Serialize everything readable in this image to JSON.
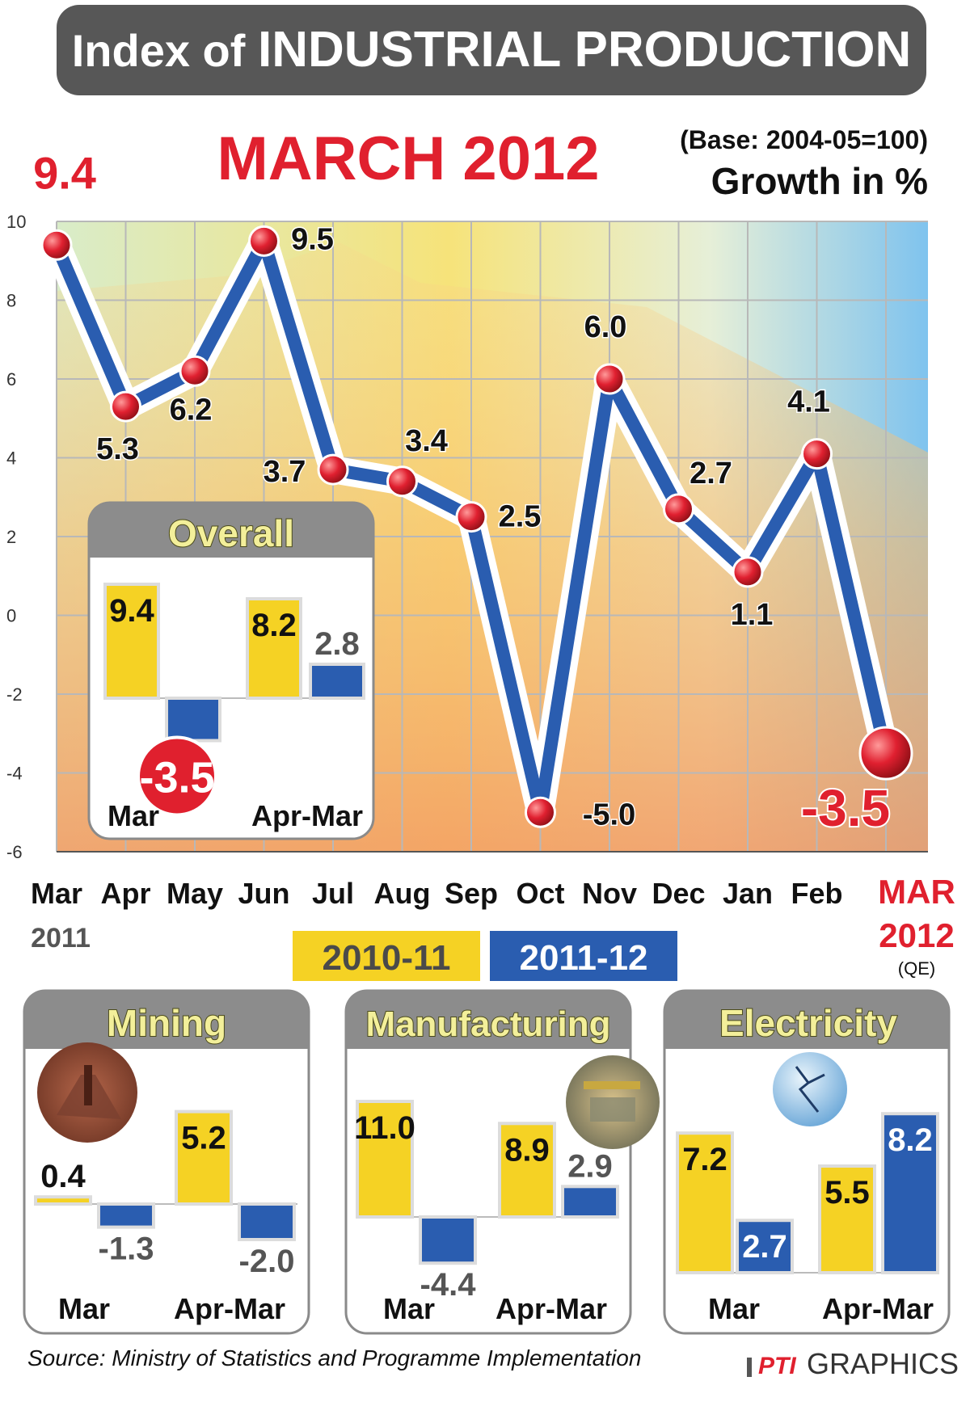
{
  "header": {
    "title_light": "Index of",
    "title_bold": "INDUSTRIAL PRODUCTION",
    "subtitle": "MARCH 2012",
    "base_note": "(Base: 2004-05=100)",
    "growth_label": "Growth in %"
  },
  "colors": {
    "series_2010_11": "#f5d224",
    "series_2011_12": "#2a5db0",
    "highlight_red": "#e0202e",
    "title_bar": "#555555"
  },
  "chart_data": [
    {
      "type": "line",
      "title": "MARCH 2012",
      "ylabel": "Growth in %",
      "ylim": [
        -6,
        10
      ],
      "yticks": [
        "10",
        "8",
        "6",
        "4",
        "2",
        "0",
        "-2",
        "-4",
        "-6"
      ],
      "categories": [
        "Mar",
        "Apr",
        "May",
        "Jun",
        "Jul",
        "Aug",
        "Sep",
        "Oct",
        "Nov",
        "Dec",
        "Jan",
        "Feb",
        "MAR"
      ],
      "year_labels": {
        "first": "2011",
        "last": "2012",
        "last_note": "(QE)"
      },
      "values": [
        9.4,
        5.3,
        6.2,
        9.5,
        3.7,
        3.4,
        2.5,
        -5.0,
        6.0,
        2.7,
        1.1,
        4.1,
        -3.5
      ],
      "value_labels": [
        "9.4",
        "5.3",
        "6.2",
        "9.5",
        "3.7",
        "3.4",
        "2.5",
        "-5.0",
        "6.0",
        "2.7",
        "1.1",
        "4.1",
        "-3.5"
      ]
    },
    {
      "type": "bar",
      "title": "Overall",
      "categories": [
        "Mar",
        "Apr-Mar"
      ],
      "series": [
        {
          "name": "2010-11",
          "values": [
            9.4,
            8.2
          ]
        },
        {
          "name": "2011-12",
          "values": [
            -3.5,
            2.8
          ]
        }
      ],
      "value_labels": [
        "9.4",
        "-3.5",
        "8.2",
        "2.8"
      ]
    },
    {
      "type": "bar",
      "title": "Mining",
      "categories": [
        "Mar",
        "Apr-Mar"
      ],
      "series": [
        {
          "name": "2010-11",
          "values": [
            0.4,
            5.2
          ]
        },
        {
          "name": "2011-12",
          "values": [
            -1.3,
            -2.0
          ]
        }
      ],
      "value_labels": [
        "0.4",
        "-1.3",
        "5.2",
        "-2.0"
      ]
    },
    {
      "type": "bar",
      "title": "Manufacturing",
      "categories": [
        "Mar",
        "Apr-Mar"
      ],
      "series": [
        {
          "name": "2010-11",
          "values": [
            11.0,
            8.9
          ]
        },
        {
          "name": "2011-12",
          "values": [
            -4.4,
            2.9
          ]
        }
      ],
      "value_labels": [
        "11.0",
        "-4.4",
        "8.9",
        "2.9"
      ]
    },
    {
      "type": "bar",
      "title": "Electricity",
      "categories": [
        "Mar",
        "Apr-Mar"
      ],
      "series": [
        {
          "name": "2010-11",
          "values": [
            7.2,
            5.5
          ]
        },
        {
          "name": "2011-12",
          "values": [
            2.7,
            8.2
          ]
        }
      ],
      "value_labels": [
        "7.2",
        "2.7",
        "5.5",
        "8.2"
      ]
    }
  ],
  "legend": [
    "2010-11",
    "2011-12"
  ],
  "footer": {
    "source": "Source: Ministry of Statistics and Programme Implementation",
    "credit_brand": "PTI",
    "credit_word": "GRAPHICS"
  }
}
